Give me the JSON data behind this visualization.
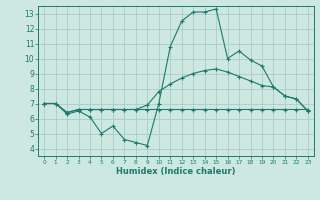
{
  "title": "",
  "xlabel": "Humidex (Indice chaleur)",
  "ylabel": "",
  "background_color": "#cce8e0",
  "grid_color": "#aacccc",
  "line_color": "#1a7a6e",
  "xlim": [
    -0.5,
    23.5
  ],
  "ylim": [
    3.5,
    13.5
  ],
  "xticks": [
    0,
    1,
    2,
    3,
    4,
    5,
    6,
    7,
    8,
    9,
    10,
    11,
    12,
    13,
    14,
    15,
    16,
    17,
    18,
    19,
    20,
    21,
    22,
    23
  ],
  "yticks": [
    4,
    5,
    6,
    7,
    8,
    9,
    10,
    11,
    12,
    13
  ],
  "series": [
    {
      "x": [
        0,
        1,
        2,
        3,
        4,
        5,
        6,
        7,
        8,
        9,
        10,
        11,
        12,
        13,
        14,
        15,
        16,
        17,
        18,
        19,
        20,
        21,
        22,
        23
      ],
      "y": [
        7.0,
        7.0,
        6.3,
        6.5,
        6.1,
        5.0,
        5.5,
        4.6,
        4.4,
        4.2,
        7.0,
        10.8,
        12.5,
        13.1,
        13.1,
        13.3,
        10.0,
        10.5,
        9.9,
        9.5,
        8.1,
        7.5,
        7.3,
        6.5
      ]
    },
    {
      "x": [
        0,
        1,
        2,
        3,
        4,
        5,
        6,
        7,
        8,
        9,
        10,
        11,
        12,
        13,
        14,
        15,
        16,
        17,
        18,
        19,
        20,
        21,
        22,
        23
      ],
      "y": [
        7.0,
        7.0,
        6.4,
        6.6,
        6.6,
        6.6,
        6.6,
        6.6,
        6.6,
        6.9,
        7.8,
        8.3,
        8.7,
        9.0,
        9.2,
        9.3,
        9.1,
        8.8,
        8.5,
        8.2,
        8.1,
        7.5,
        7.3,
        6.5
      ]
    },
    {
      "x": [
        0,
        1,
        2,
        3,
        4,
        5,
        6,
        7,
        8,
        9,
        10,
        11,
        12,
        13,
        14,
        15,
        16,
        17,
        18,
        19,
        20,
        21,
        22,
        23
      ],
      "y": [
        7.0,
        7.0,
        6.4,
        6.6,
        6.6,
        6.6,
        6.6,
        6.6,
        6.6,
        6.6,
        6.6,
        6.6,
        6.6,
        6.6,
        6.6,
        6.6,
        6.6,
        6.6,
        6.6,
        6.6,
        6.6,
        6.6,
        6.6,
        6.6
      ]
    }
  ]
}
